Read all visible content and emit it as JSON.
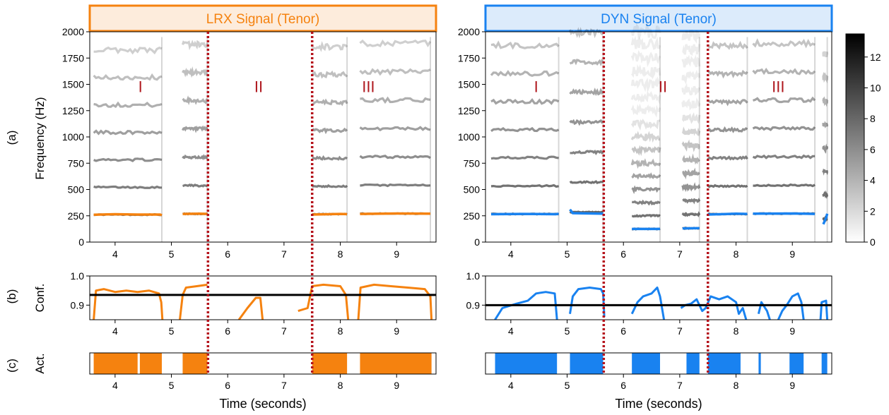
{
  "row_labels": [
    "(a)",
    "(b)",
    "(c)"
  ],
  "ylabels": {
    "spectrogram": "Frequency (Hz)",
    "confidence": "Conf.",
    "activity": "Act."
  },
  "xlabel": "Time (seconds)",
  "colors": {
    "lrx": "#f5820f",
    "dyn": "#1982f0",
    "boundary": "#b5121b",
    "threshold": "#000000",
    "segment_label": "#b01a20"
  },
  "panels": [
    {
      "id": "lrx",
      "title": "LRX Signal (Tenor)",
      "title_bg": "#fdecdc",
      "color": "#f5820f",
      "confidence_threshold": 0.935,
      "segment_labels": [
        {
          "text": "I",
          "t": 4.45,
          "f": 1480
        },
        {
          "text": "II",
          "t": 6.55,
          "f": 1480
        },
        {
          "text": "III",
          "t": 8.5,
          "f": 1480
        }
      ],
      "f0_segments": [
        [
          [
            3.62,
            260
          ],
          [
            4.0,
            265
          ],
          [
            4.4,
            262
          ],
          [
            4.8,
            262
          ],
          [
            4.83,
            255
          ]
        ],
        [
          [
            5.2,
            268
          ],
          [
            5.5,
            270
          ],
          [
            5.64,
            268
          ]
        ],
        [
          [
            7.5,
            262
          ],
          [
            8.0,
            268
          ],
          [
            8.12,
            266
          ]
        ],
        [
          [
            8.35,
            268
          ],
          [
            9.0,
            272
          ],
          [
            9.6,
            270
          ]
        ]
      ],
      "confidence": [
        [
          [
            3.62,
            0.85
          ],
          [
            3.66,
            0.95
          ],
          [
            3.8,
            0.955
          ],
          [
            4.0,
            0.945
          ],
          [
            4.2,
            0.95
          ],
          [
            4.4,
            0.945
          ],
          [
            4.6,
            0.95
          ],
          [
            4.78,
            0.94
          ],
          [
            4.82,
            0.91
          ],
          [
            4.84,
            0.85
          ]
        ],
        [
          [
            5.15,
            0.85
          ],
          [
            5.2,
            0.935
          ],
          [
            5.26,
            0.96
          ],
          [
            5.45,
            0.965
          ],
          [
            5.64,
            0.97
          ]
        ],
        [
          [
            6.2,
            0.85
          ],
          [
            6.35,
            0.89
          ],
          [
            6.5,
            0.925
          ],
          [
            6.58,
            0.925
          ],
          [
            6.62,
            0.85
          ]
        ],
        [
          [
            7.25,
            0.88
          ],
          [
            7.42,
            0.89
          ],
          [
            7.5,
            0.965
          ],
          [
            7.7,
            0.97
          ],
          [
            8.0,
            0.965
          ],
          [
            8.1,
            0.935
          ],
          [
            8.14,
            0.85
          ]
        ],
        [
          [
            8.32,
            0.85
          ],
          [
            8.36,
            0.96
          ],
          [
            8.6,
            0.97
          ],
          [
            8.9,
            0.965
          ],
          [
            9.2,
            0.96
          ],
          [
            9.5,
            0.955
          ],
          [
            9.6,
            0.93
          ],
          [
            9.62,
            0.85
          ]
        ]
      ],
      "activity": [
        [
          3.62,
          4.4
        ],
        [
          4.44,
          4.83
        ],
        [
          5.2,
          5.64
        ],
        [
          7.5,
          8.12
        ],
        [
          8.35,
          9.62
        ]
      ]
    },
    {
      "id": "dyn",
      "title": "DYN Signal (Tenor)",
      "title_bg": "#dcebfb",
      "color": "#1982f0",
      "confidence_threshold": 0.9,
      "segment_labels": [
        {
          "text": "I",
          "t": 4.45,
          "f": 1480
        },
        {
          "text": "II",
          "t": 6.7,
          "f": 1480
        },
        {
          "text": "III",
          "t": 8.75,
          "f": 1480
        }
      ],
      "f0_segments": [
        [
          [
            3.65,
            265
          ],
          [
            4.2,
            268
          ],
          [
            4.8,
            265
          ],
          [
            4.85,
            270
          ]
        ],
        [
          [
            5.05,
            310
          ],
          [
            5.1,
            275
          ],
          [
            5.64,
            270
          ]
        ],
        [
          [
            6.15,
            125
          ],
          [
            6.4,
            125
          ],
          [
            6.65,
            125
          ]
        ],
        [
          [
            7.05,
            130
          ],
          [
            7.35,
            132
          ]
        ],
        [
          [
            7.5,
            262
          ],
          [
            8.0,
            270
          ],
          [
            8.2,
            268
          ]
        ],
        [
          [
            8.3,
            270
          ],
          [
            9.0,
            272
          ],
          [
            9.4,
            268
          ]
        ],
        [
          [
            9.55,
            170
          ],
          [
            9.6,
            230
          ],
          [
            9.62,
            270
          ]
        ]
      ],
      "confidence": [
        [
          [
            3.72,
            0.85
          ],
          [
            3.85,
            0.89
          ],
          [
            4.1,
            0.905
          ],
          [
            4.3,
            0.915
          ],
          [
            4.45,
            0.94
          ],
          [
            4.62,
            0.945
          ],
          [
            4.78,
            0.94
          ],
          [
            4.82,
            0.85
          ]
        ],
        [
          [
            5.05,
            0.87
          ],
          [
            5.1,
            0.93
          ],
          [
            5.2,
            0.955
          ],
          [
            5.4,
            0.96
          ],
          [
            5.6,
            0.955
          ],
          [
            5.64,
            0.94
          ],
          [
            5.66,
            0.86
          ]
        ],
        [
          [
            6.15,
            0.87
          ],
          [
            6.25,
            0.91
          ],
          [
            6.35,
            0.93
          ],
          [
            6.5,
            0.94
          ],
          [
            6.6,
            0.96
          ],
          [
            6.65,
            0.93
          ],
          [
            6.72,
            0.85
          ]
        ],
        [
          [
            7.02,
            0.89
          ],
          [
            7.1,
            0.9
          ],
          [
            7.2,
            0.905
          ],
          [
            7.3,
            0.92
          ],
          [
            7.4,
            0.88
          ],
          [
            7.46,
            0.89
          ],
          [
            7.55,
            0.93
          ],
          [
            7.7,
            0.92
          ],
          [
            7.85,
            0.93
          ],
          [
            8.0,
            0.91
          ],
          [
            8.05,
            0.87
          ],
          [
            8.12,
            0.89
          ],
          [
            8.18,
            0.85
          ]
        ],
        [
          [
            8.4,
            0.87
          ],
          [
            8.45,
            0.91
          ],
          [
            8.55,
            0.88
          ],
          [
            8.6,
            0.85
          ]
        ],
        [
          [
            8.75,
            0.85
          ],
          [
            8.82,
            0.88
          ],
          [
            8.9,
            0.9
          ],
          [
            9.0,
            0.93
          ],
          [
            9.1,
            0.94
          ],
          [
            9.16,
            0.91
          ],
          [
            9.2,
            0.85
          ]
        ],
        [
          [
            9.5,
            0.85
          ],
          [
            9.52,
            0.91
          ],
          [
            9.6,
            0.915
          ],
          [
            9.62,
            0.85
          ]
        ]
      ],
      "activity": [
        [
          3.72,
          4.82
        ],
        [
          5.05,
          5.64
        ],
        [
          6.15,
          6.65
        ],
        [
          7.12,
          7.35
        ],
        [
          7.5,
          8.08
        ],
        [
          8.4,
          8.44
        ],
        [
          8.95,
          9.2
        ],
        [
          9.52,
          9.62
        ]
      ]
    }
  ],
  "chart_data": [
    {
      "type": "heatmap",
      "title": "LRX Signal (Tenor)",
      "xlabel": "",
      "ylabel": "Frequency (Hz)",
      "xlim": [
        3.55,
        9.7
      ],
      "ylim": [
        0,
        2000
      ],
      "xticks": [
        4,
        5,
        6,
        7,
        8,
        9
      ],
      "yticks": [
        0,
        250,
        500,
        750,
        1000,
        1250,
        1500,
        1750,
        2000
      ],
      "grid": false,
      "overlay_series": [
        {
          "name": "F0",
          "type": "line",
          "color": "#f5820f"
        }
      ],
      "vertical_markers_x": [
        5.65,
        7.5
      ]
    },
    {
      "type": "heatmap",
      "title": "DYN Signal (Tenor)",
      "xlabel": "",
      "ylabel": "",
      "xlim": [
        3.55,
        9.7
      ],
      "ylim": [
        0,
        2000
      ],
      "xticks": [
        4,
        5,
        6,
        7,
        8,
        9
      ],
      "yticks": [
        0,
        250,
        500,
        750,
        1000,
        1250,
        1500,
        1750,
        2000
      ],
      "colorbar": {
        "range": [
          0,
          13.5
        ],
        "ticks": [
          0,
          2,
          4,
          6,
          8,
          10,
          12
        ],
        "colormap": "gray_r"
      },
      "overlay_series": [
        {
          "name": "F0",
          "type": "line",
          "color": "#1982f0"
        }
      ],
      "vertical_markers_x": [
        5.65,
        7.5
      ]
    },
    {
      "type": "line",
      "xlabel": "",
      "ylabel": "Conf.",
      "xlim": [
        3.55,
        9.7
      ],
      "ylim": [
        0.85,
        1.0
      ],
      "yticks": [
        0.9,
        1.0
      ],
      "xticks": [
        4,
        5,
        6,
        7,
        8,
        9
      ],
      "threshold": 0.935,
      "series": [
        {
          "color": "#f5820f"
        }
      ]
    },
    {
      "type": "line",
      "xlabel": "",
      "ylabel": "",
      "xlim": [
        3.55,
        9.7
      ],
      "ylim": [
        0.85,
        1.0
      ],
      "yticks": [
        0.9,
        1.0
      ],
      "xticks": [
        4,
        5,
        6,
        7,
        8,
        9
      ],
      "threshold": 0.9,
      "series": [
        {
          "color": "#1982f0"
        }
      ]
    },
    {
      "type": "bar",
      "xlabel": "Time (seconds)",
      "ylabel": "Act.",
      "xlim": [
        3.55,
        9.7
      ],
      "xticks": [
        4,
        5,
        6,
        7,
        8,
        9
      ],
      "intervals": [
        [
          3.62,
          4.4
        ],
        [
          4.44,
          4.83
        ],
        [
          5.2,
          5.64
        ],
        [
          7.5,
          8.12
        ],
        [
          8.35,
          9.62
        ]
      ]
    },
    {
      "type": "bar",
      "xlabel": "Time (seconds)",
      "ylabel": "",
      "xlim": [
        3.55,
        9.7
      ],
      "xticks": [
        4,
        5,
        6,
        7,
        8,
        9
      ],
      "intervals": [
        [
          3.72,
          4.82
        ],
        [
          5.05,
          5.64
        ],
        [
          6.15,
          6.65
        ],
        [
          7.12,
          7.35
        ],
        [
          7.5,
          8.08
        ],
        [
          8.4,
          8.44
        ],
        [
          8.95,
          9.2
        ],
        [
          9.52,
          9.62
        ]
      ]
    }
  ]
}
